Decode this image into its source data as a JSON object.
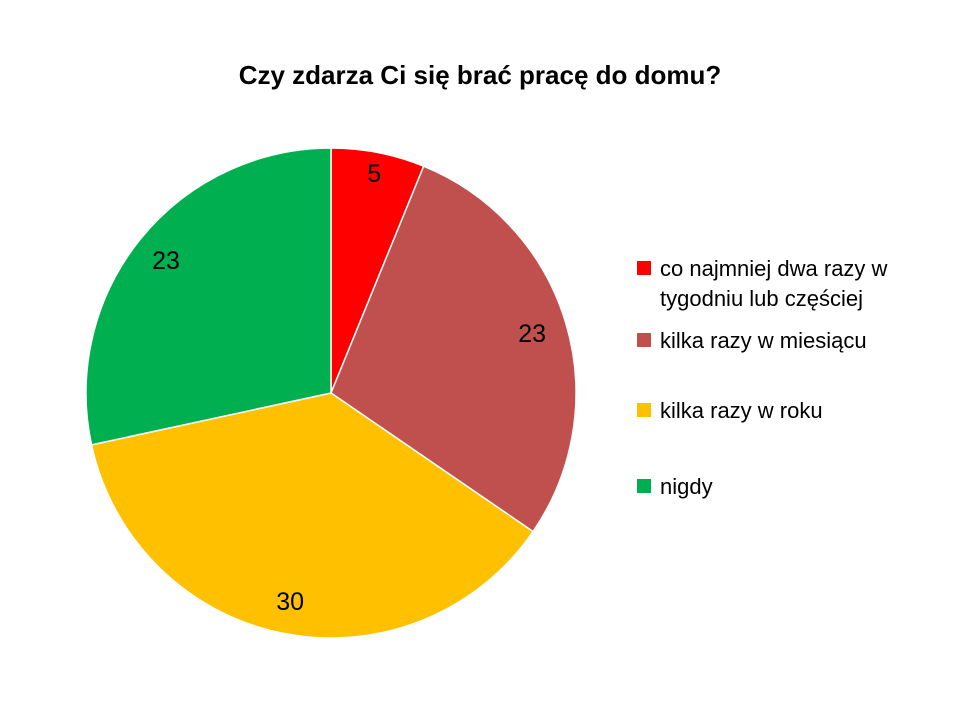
{
  "chart_data": {
    "type": "pie",
    "title": "Czy zdarza Ci się brać pracę do domu?",
    "categories": [
      "co najmniej dwa razy w tygodniu lub częściej",
      "kilka razy w miesiącu",
      "kilka razy w roku",
      "nigdy"
    ],
    "legend_lines": [
      [
        "co najmniej dwa razy w",
        "tygodniu lub częściej"
      ],
      [
        "kilka razy w miesiącu"
      ],
      [
        "kilka razy w roku"
      ],
      [
        "nigdy"
      ]
    ],
    "values": [
      5,
      23,
      30,
      23
    ],
    "data_labels": [
      "5",
      "23",
      "30",
      "23"
    ],
    "colors": [
      "#ff0000",
      "#c0504d",
      "#ffc000",
      "#00b050"
    ],
    "legend_position": "right",
    "start_angle": "top, clockwise"
  }
}
